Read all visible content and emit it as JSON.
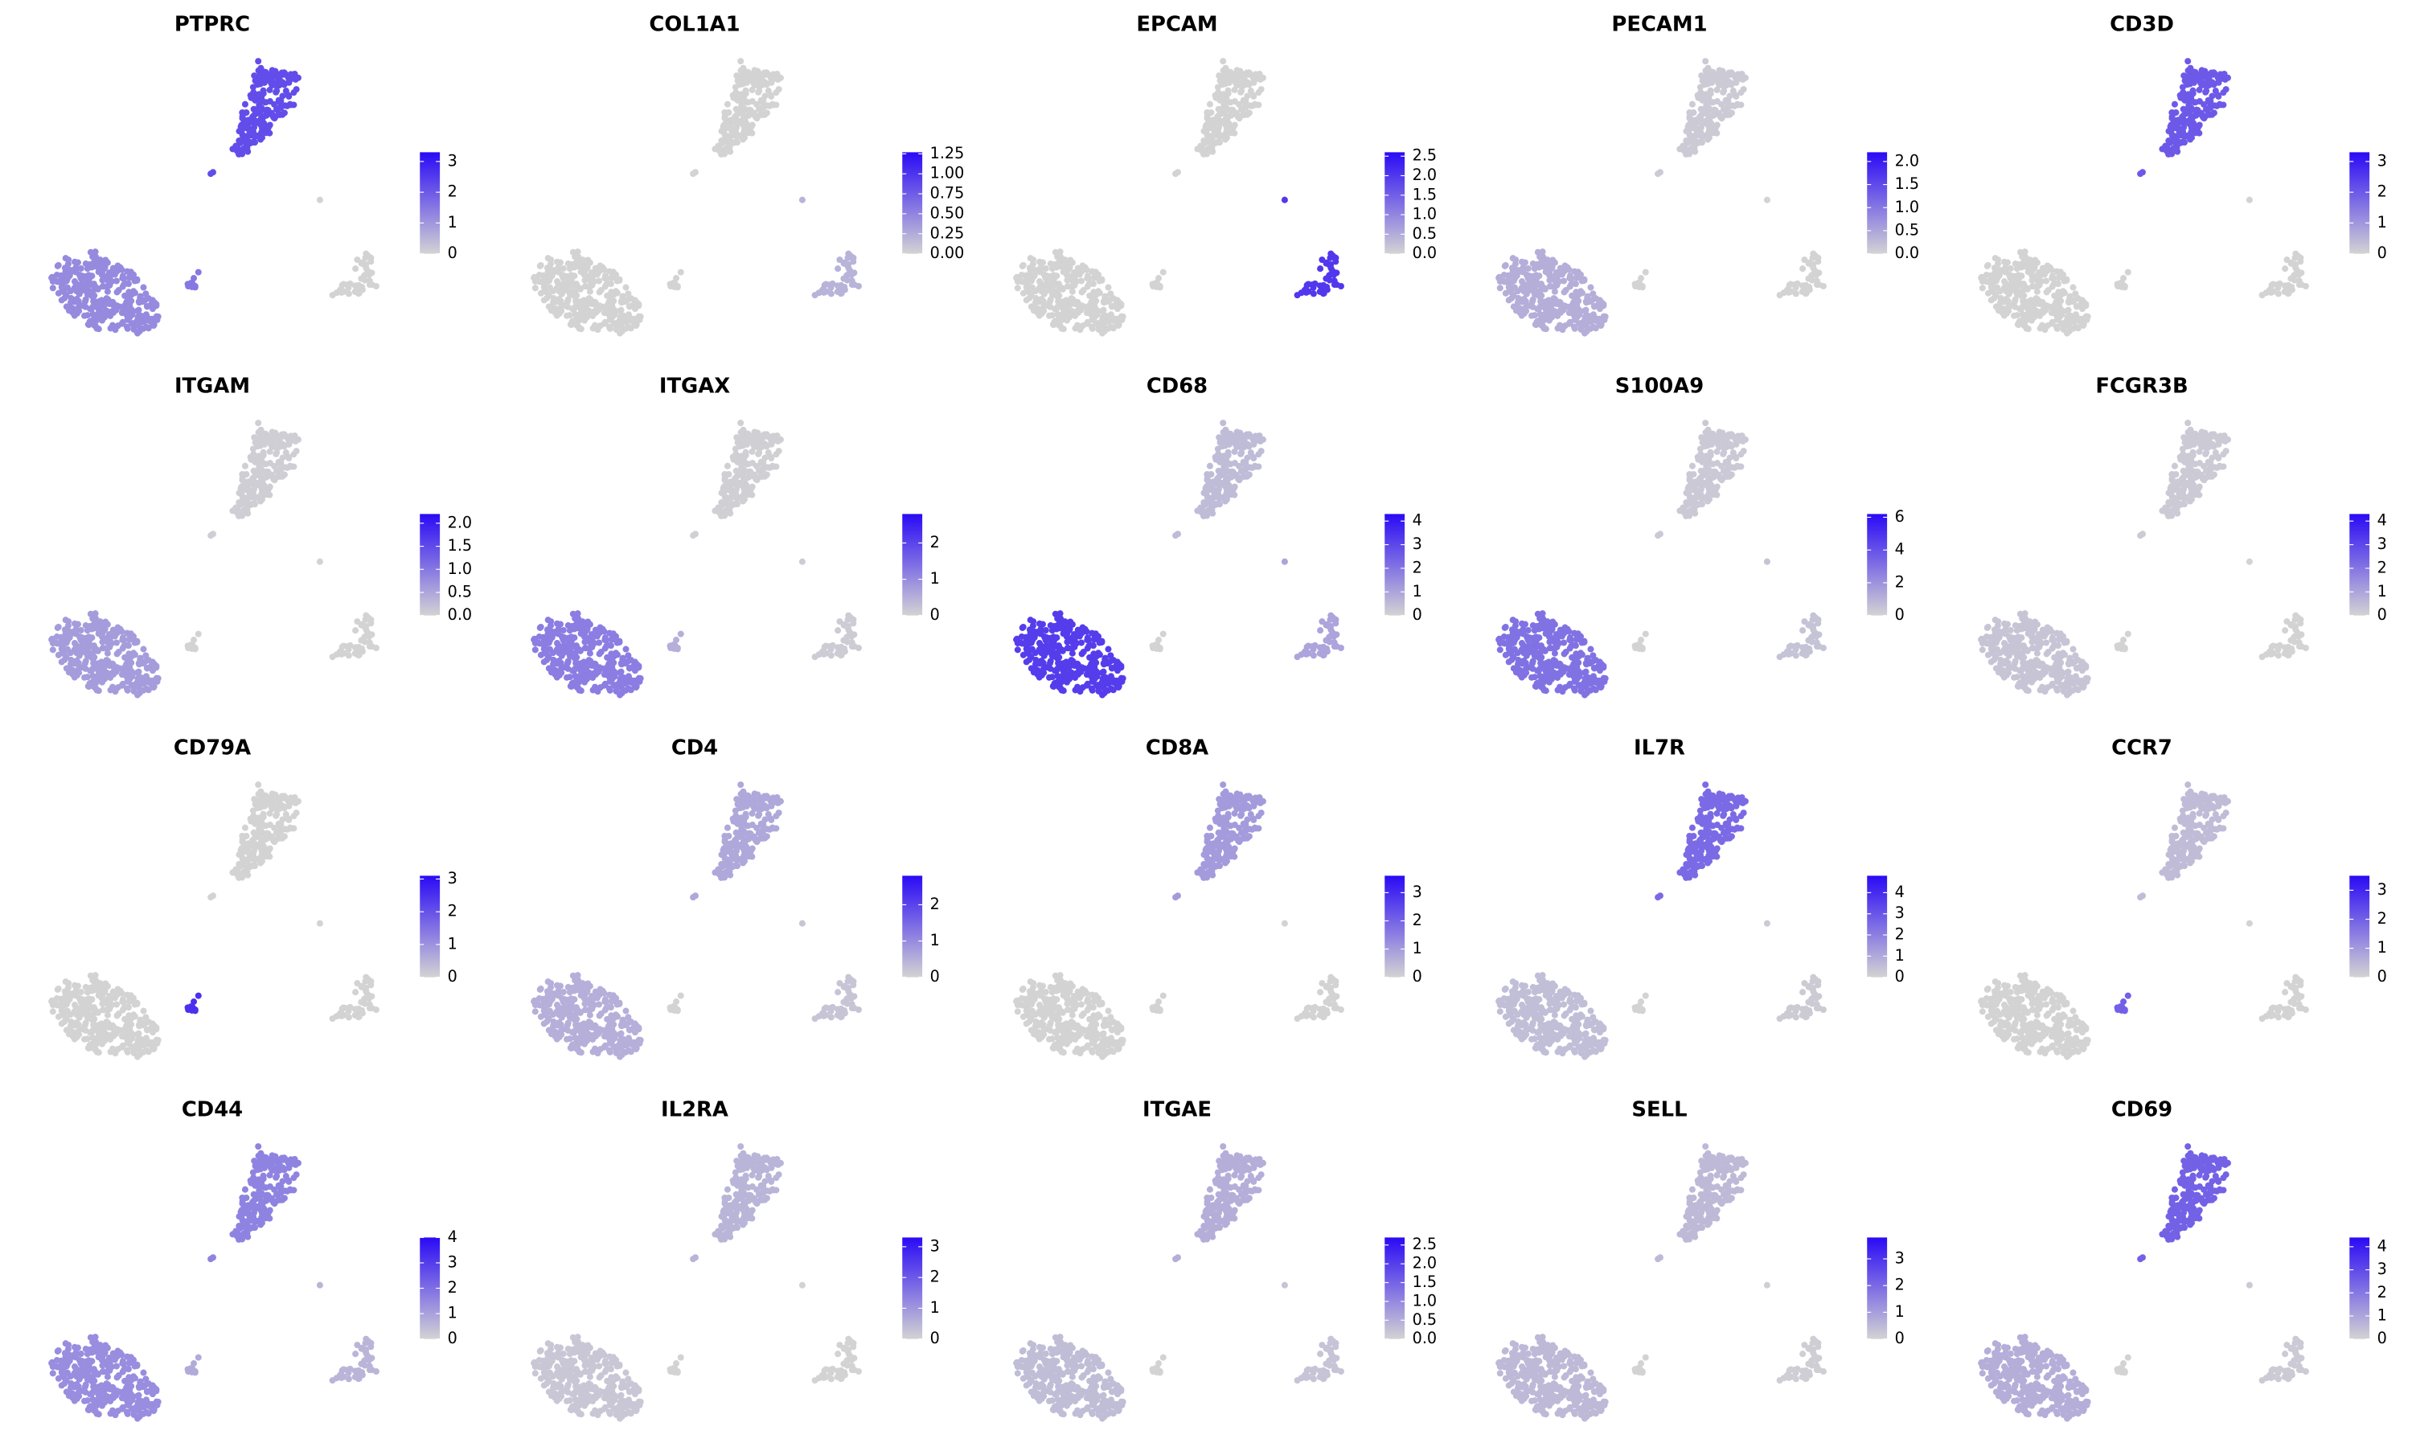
{
  "chart_data": [
    {
      "type": "scatter",
      "title": "PTPRC",
      "values": [
        2.2,
        1.2,
        0,
        1.5
      ],
      "clim": [
        0,
        3.3
      ],
      "ticks": [
        0,
        1,
        2,
        3
      ],
      "low_color": "#d3d3d3",
      "high_color": "#2a0af5"
    },
    {
      "type": "scatter",
      "title": "COL1A1",
      "values": [
        0,
        0,
        0.2,
        0
      ],
      "clim": [
        0,
        1.27
      ],
      "ticks": [
        {
          "value": 0,
          "label": "0.00"
        },
        {
          "value": 0.25,
          "label": "0.25"
        },
        {
          "value": 0.5,
          "label": "0.50"
        },
        {
          "value": 0.75,
          "label": "0.75"
        },
        {
          "value": 1,
          "label": "1.00"
        },
        {
          "value": 1.25,
          "label": "1.25"
        }
      ],
      "low_color": "#d3d3d3",
      "high_color": "#2a0af5"
    },
    {
      "type": "scatter",
      "title": "EPCAM",
      "values": [
        0,
        0,
        2.0,
        0
      ],
      "clim": [
        0,
        2.6
      ],
      "ticks": [
        {
          "value": 0,
          "label": "0.0"
        },
        0.5,
        {
          "value": 1,
          "label": "1.0"
        },
        1.5,
        {
          "value": 2,
          "label": "2.0"
        },
        2.5
      ],
      "low_color": "#d3d3d3",
      "high_color": "#2a0af5"
    },
    {
      "type": "scatter",
      "title": "PECAM1",
      "values": [
        0.1,
        0.4,
        0,
        0
      ],
      "clim": [
        0,
        2.2
      ],
      "ticks": [
        {
          "value": 0,
          "label": "0.0"
        },
        0.5,
        {
          "value": 1,
          "label": "1.0"
        },
        1.5,
        {
          "value": 2,
          "label": "2.0"
        }
      ],
      "low_color": "#d3d3d3",
      "high_color": "#2a0af5"
    },
    {
      "type": "scatter",
      "title": "CD3D",
      "values": [
        2.0,
        0,
        0,
        0
      ],
      "clim": [
        0,
        3.3
      ],
      "ticks": [
        0,
        1,
        2,
        3
      ],
      "low_color": "#d3d3d3",
      "high_color": "#2a0af5"
    },
    {
      "type": "scatter",
      "title": "ITGAM",
      "values": [
        0.05,
        0.6,
        0,
        0
      ],
      "clim": [
        0,
        2.2
      ],
      "ticks": [
        {
          "value": 0,
          "label": "0.0"
        },
        0.5,
        {
          "value": 1,
          "label": "1.0"
        },
        1.5,
        {
          "value": 2,
          "label": "2.0"
        }
      ],
      "low_color": "#d3d3d3",
      "high_color": "#2a0af5"
    },
    {
      "type": "scatter",
      "title": "ITGAX",
      "values": [
        0.05,
        1.2,
        0.1,
        0.5
      ],
      "clim": [
        0,
        2.8
      ],
      "ticks": [
        0,
        1,
        2
      ],
      "low_color": "#d3d3d3",
      "high_color": "#2a0af5"
    },
    {
      "type": "scatter",
      "title": "CD68",
      "values": [
        0.5,
        3.2,
        1.0,
        0
      ],
      "clim": [
        0,
        4.3
      ],
      "ticks": [
        0,
        1,
        2,
        3,
        4
      ],
      "low_color": "#d3d3d3",
      "high_color": "#2a0af5"
    },
    {
      "type": "scatter",
      "title": "S100A9",
      "values": [
        0.3,
        3.0,
        0.5,
        0
      ],
      "clim": [
        0,
        6.2
      ],
      "ticks": [
        0,
        2,
        4,
        6
      ],
      "low_color": "#d3d3d3",
      "high_color": "#2a0af5"
    },
    {
      "type": "scatter",
      "title": "FCGR3B",
      "values": [
        0.2,
        0.3,
        0,
        0
      ],
      "clim": [
        0,
        4.3
      ],
      "ticks": [
        0,
        1,
        2,
        3,
        4
      ],
      "low_color": "#d3d3d3",
      "high_color": "#2a0af5"
    },
    {
      "type": "scatter",
      "title": "CD79A",
      "values": [
        0,
        0,
        0,
        2.5
      ],
      "clim": [
        0,
        3.1
      ],
      "ticks": [
        0,
        1,
        2,
        3
      ],
      "low_color": "#d3d3d3",
      "high_color": "#2a0af5"
    },
    {
      "type": "scatter",
      "title": "CD4",
      "values": [
        0.6,
        0.5,
        0.2,
        0
      ],
      "clim": [
        0,
        2.8
      ],
      "ticks": [
        0,
        1,
        2
      ],
      "low_color": "#d3d3d3",
      "high_color": "#2a0af5"
    },
    {
      "type": "scatter",
      "title": "CD8A",
      "values": [
        1.0,
        0,
        0,
        0
      ],
      "clim": [
        0,
        3.6
      ],
      "ticks": [
        0,
        1,
        2,
        3
      ],
      "low_color": "#d3d3d3",
      "high_color": "#2a0af5"
    },
    {
      "type": "scatter",
      "title": "IL7R",
      "values": [
        2.5,
        0.5,
        0.2,
        0
      ],
      "clim": [
        0,
        4.8
      ],
      "ticks": [
        0,
        1,
        2,
        3,
        4
      ],
      "low_color": "#d3d3d3",
      "high_color": "#2a0af5"
    },
    {
      "type": "scatter",
      "title": "CCR7",
      "values": [
        0.4,
        0,
        0,
        2.0
      ],
      "clim": [
        0,
        3.5
      ],
      "ticks": [
        0,
        1,
        2,
        3
      ],
      "low_color": "#d3d3d3",
      "high_color": "#2a0af5"
    },
    {
      "type": "scatter",
      "title": "CD44",
      "values": [
        1.6,
        1.4,
        0.6,
        0.8
      ],
      "clim": [
        0,
        4.0
      ],
      "ticks": [
        0,
        1,
        2,
        3,
        4
      ],
      "low_color": "#d3d3d3",
      "high_color": "#2a0af5"
    },
    {
      "type": "scatter",
      "title": "IL2RA",
      "values": [
        0.5,
        0.2,
        0,
        0
      ],
      "clim": [
        0,
        3.3
      ],
      "ticks": [
        0,
        1,
        2,
        3
      ],
      "low_color": "#d3d3d3",
      "high_color": "#2a0af5"
    },
    {
      "type": "scatter",
      "title": "ITGAE",
      "values": [
        0.5,
        0.3,
        0.2,
        0
      ],
      "clim": [
        0,
        2.7
      ],
      "ticks": [
        {
          "value": 0,
          "label": "0.0"
        },
        0.5,
        {
          "value": 1,
          "label": "1.0"
        },
        1.5,
        {
          "value": 2,
          "label": "2.0"
        },
        2.5
      ],
      "low_color": "#d3d3d3",
      "high_color": "#2a0af5"
    },
    {
      "type": "scatter",
      "title": "SELL",
      "values": [
        0.5,
        0.5,
        0.1,
        0
      ],
      "clim": [
        0,
        3.8
      ],
      "ticks": [
        0,
        1,
        2,
        3
      ],
      "low_color": "#d3d3d3",
      "high_color": "#2a0af5"
    },
    {
      "type": "scatter",
      "title": "CD69",
      "values": [
        2.5,
        0.8,
        0.2,
        0
      ],
      "clim": [
        0,
        4.4
      ],
      "ticks": [
        0,
        1,
        2,
        3,
        4
      ],
      "low_color": "#d3d3d3",
      "high_color": "#2a0af5"
    }
  ]
}
